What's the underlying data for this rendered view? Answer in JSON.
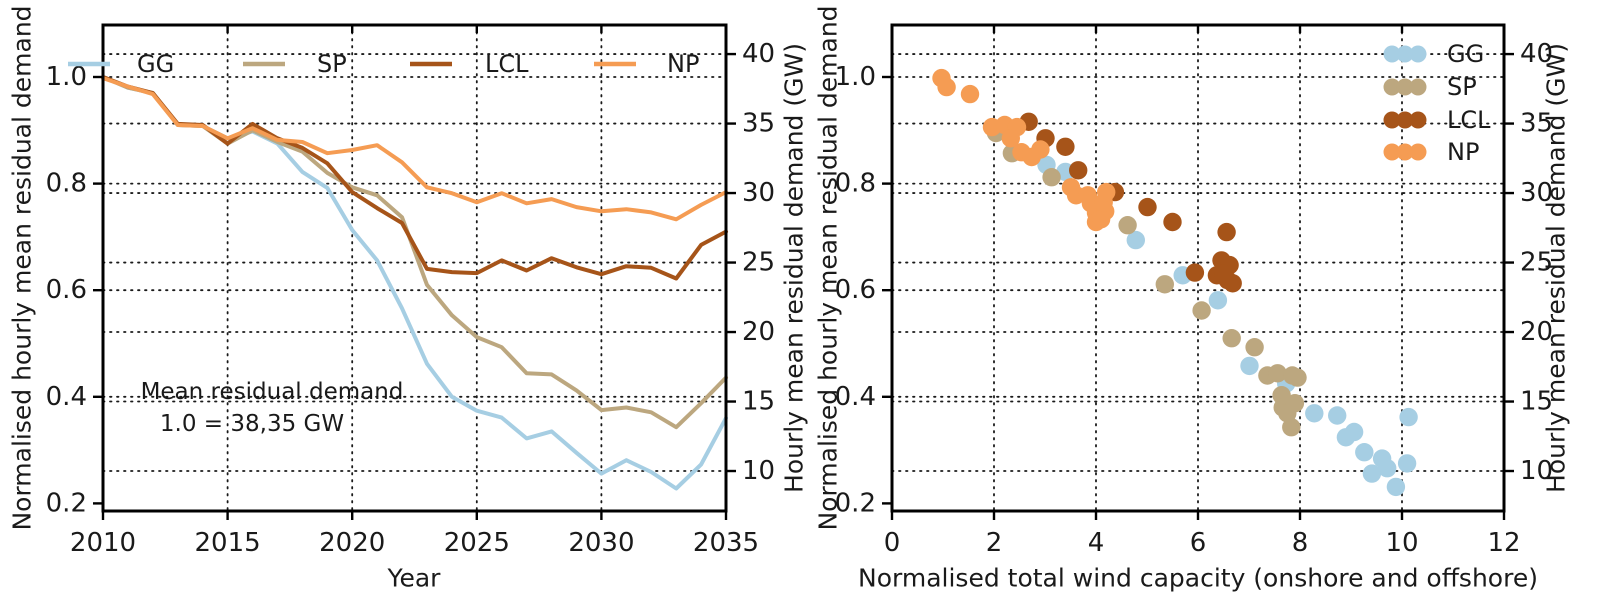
{
  "figure": {
    "background": "#ffffff",
    "text_color": "#1a1a1a",
    "spine_color": "#000000"
  },
  "colors": {
    "GG": "#a6cee3",
    "SP": "#bca77f",
    "LCL": "#a65419",
    "NP": "#f59c53"
  },
  "annotation": {
    "line1": "Mean residual demand",
    "line2": "1.0 = 38,35 GW"
  },
  "chart_data": [
    {
      "type": "line",
      "title": "",
      "xlabel": "Year",
      "ylabel_left": "Normalised hourly mean residual demand",
      "ylabel_right": "Hourly mean residual demand (GW)",
      "xlim": [
        2010,
        2035
      ],
      "ylim": [
        0.19,
        1.09
      ],
      "grid": "dotted-both-axes",
      "legend_position": "top-inside-horizontal",
      "gw_per_unit": 38.35,
      "x_ticks": [
        2010,
        2015,
        2020,
        2025,
        2030,
        2035
      ],
      "x_tick_labels": [
        "2010",
        "2015",
        "2020",
        "2025",
        "2030",
        "2035"
      ],
      "x_grid": [
        2015,
        2020,
        2025,
        2030
      ],
      "y_ticks_left_values": [
        1.0,
        0.8,
        0.6,
        0.4,
        0.2
      ],
      "y_tick_labels_left": [
        "1.0",
        "0.8",
        "0.6",
        "0.4",
        "0.2"
      ],
      "y_grid_left_values": [
        1.0,
        0.8,
        0.6,
        0.4
      ],
      "y_ticks_right_gw": [
        40,
        35,
        30,
        25,
        20,
        15,
        10
      ],
      "y_tick_labels_right": [
        "40",
        "35",
        "30",
        "25",
        "20",
        "15",
        "10"
      ],
      "legend": [
        "GG",
        "SP",
        "LCL",
        "NP"
      ],
      "x": [
        2010,
        2011,
        2012,
        2013,
        2014,
        2015,
        2016,
        2017,
        2018,
        2019,
        2020,
        2021,
        2022,
        2023,
        2024,
        2025,
        2026,
        2027,
        2028,
        2029,
        2030,
        2031,
        2032,
        2033,
        2034,
        2035
      ],
      "series": [
        {
          "name": "GG",
          "values": [
            1.0,
            0.98,
            0.97,
            0.91,
            0.908,
            0.885,
            0.898,
            0.875,
            0.822,
            0.792,
            0.713,
            0.656,
            0.566,
            0.462,
            0.4,
            0.374,
            0.361,
            0.322,
            0.335,
            0.295,
            0.256,
            0.281,
            0.259,
            0.228,
            0.273,
            0.36
          ]
        },
        {
          "name": "SP",
          "values": [
            1.0,
            0.98,
            0.97,
            0.91,
            0.908,
            0.875,
            0.9,
            0.878,
            0.86,
            0.82,
            0.793,
            0.778,
            0.737,
            0.61,
            0.553,
            0.512,
            0.493,
            0.444,
            0.442,
            0.412,
            0.375,
            0.38,
            0.371,
            0.343,
            0.388,
            0.436
          ]
        },
        {
          "name": "LCL",
          "values": [
            1.0,
            0.982,
            0.97,
            0.912,
            0.91,
            0.875,
            0.912,
            0.885,
            0.867,
            0.838,
            0.784,
            0.754,
            0.726,
            0.64,
            0.634,
            0.632,
            0.656,
            0.637,
            0.66,
            0.643,
            0.63,
            0.645,
            0.642,
            0.622,
            0.685,
            0.71
          ]
        },
        {
          "name": "NP",
          "values": [
            0.998,
            0.982,
            0.968,
            0.91,
            0.908,
            0.885,
            0.904,
            0.882,
            0.878,
            0.857,
            0.863,
            0.872,
            0.84,
            0.793,
            0.782,
            0.765,
            0.782,
            0.763,
            0.771,
            0.756,
            0.748,
            0.752,
            0.746,
            0.733,
            0.76,
            0.784
          ]
        }
      ]
    },
    {
      "type": "scatter",
      "title": "",
      "xlabel": "Normalised total wind capacity (onshore and offshore)",
      "ylabel_left": "Normalised hourly mean residual demand",
      "ylabel_right": "Hourly mean residual demand (GW)",
      "xlim": [
        0,
        12
      ],
      "ylim": [
        0.19,
        1.09
      ],
      "grid": "dotted-both-axes",
      "legend_position": "upper-right-inside",
      "gw_per_unit": 38.35,
      "x_ticks": [
        0,
        2,
        4,
        6,
        8,
        10,
        12
      ],
      "x_tick_labels": [
        "0",
        "2",
        "4",
        "6",
        "8",
        "10",
        "12"
      ],
      "x_grid": [
        2,
        4,
        6,
        8,
        10
      ],
      "y_ticks_left_values": [
        1.0,
        0.8,
        0.6,
        0.4,
        0.2
      ],
      "y_tick_labels_left": [
        "1.0",
        "0.8",
        "0.6",
        "0.4",
        "0.2"
      ],
      "y_grid_left_values": [
        1.0,
        0.8,
        0.6,
        0.4
      ],
      "y_ticks_right_gw": [
        40,
        35,
        30,
        25,
        20,
        15,
        10
      ],
      "y_tick_labels_right": [
        "40",
        "35",
        "30",
        "25",
        "20",
        "15",
        "10"
      ],
      "legend": [
        "GG",
        "SP",
        "LCL",
        "NP"
      ],
      "series": [
        {
          "name": "GG",
          "points": [
            [
              3.03,
              0.835
            ],
            [
              3.4,
              0.822
            ],
            [
              4.78,
              0.694
            ],
            [
              5.7,
              0.628
            ],
            [
              6.39,
              0.581
            ],
            [
              7.01,
              0.458
            ],
            [
              7.73,
              0.425
            ],
            [
              8.28,
              0.369
            ],
            [
              8.73,
              0.365
            ],
            [
              8.9,
              0.324
            ],
            [
              9.06,
              0.334
            ],
            [
              9.26,
              0.296
            ],
            [
              9.41,
              0.256
            ],
            [
              9.61,
              0.284
            ],
            [
              9.71,
              0.266
            ],
            [
              9.88,
              0.231
            ],
            [
              10.1,
              0.275
            ],
            [
              10.13,
              0.362
            ]
          ]
        },
        {
          "name": "SP",
          "points": [
            [
              2.04,
              0.895
            ],
            [
              2.35,
              0.857
            ],
            [
              3.13,
              0.812
            ],
            [
              4.62,
              0.722
            ],
            [
              5.35,
              0.611
            ],
            [
              6.07,
              0.562
            ],
            [
              6.66,
              0.51
            ],
            [
              7.11,
              0.493
            ],
            [
              7.36,
              0.44
            ],
            [
              7.56,
              0.444
            ],
            [
              7.85,
              0.44
            ],
            [
              7.64,
              0.403
            ],
            [
              7.66,
              0.38
            ],
            [
              7.75,
              0.369
            ],
            [
              7.83,
              0.343
            ],
            [
              7.9,
              0.388
            ],
            [
              7.95,
              0.436
            ]
          ]
        },
        {
          "name": "LCL",
          "points": [
            [
              2.68,
              0.916
            ],
            [
              3.01,
              0.885
            ],
            [
              3.4,
              0.869
            ],
            [
              3.65,
              0.825
            ],
            [
              4.37,
              0.784
            ],
            [
              5.01,
              0.756
            ],
            [
              5.5,
              0.728
            ],
            [
              5.94,
              0.633
            ],
            [
              6.46,
              0.656
            ],
            [
              6.62,
              0.647
            ],
            [
              6.37,
              0.628
            ],
            [
              6.58,
              0.619
            ],
            [
              6.68,
              0.613
            ],
            [
              6.5,
              0.631
            ],
            [
              6.56,
              0.709
            ]
          ]
        },
        {
          "name": "NP",
          "points": [
            [
              0.97,
              0.998
            ],
            [
              1.07,
              0.981
            ],
            [
              1.53,
              0.968
            ],
            [
              1.96,
              0.906
            ],
            [
              2.21,
              0.91
            ],
            [
              2.45,
              0.906
            ],
            [
              2.33,
              0.885
            ],
            [
              2.54,
              0.859
            ],
            [
              2.74,
              0.85
            ],
            [
              2.91,
              0.864
            ],
            [
              3.51,
              0.793
            ],
            [
              3.61,
              0.778
            ],
            [
              3.84,
              0.778
            ],
            [
              3.9,
              0.763
            ],
            [
              4.0,
              0.745
            ],
            [
              4.0,
              0.728
            ],
            [
              4.05,
              0.76
            ],
            [
              4.12,
              0.752
            ],
            [
              4.18,
              0.748
            ],
            [
              4.1,
              0.733
            ],
            [
              4.15,
              0.765
            ],
            [
              4.2,
              0.784
            ]
          ]
        }
      ]
    }
  ]
}
